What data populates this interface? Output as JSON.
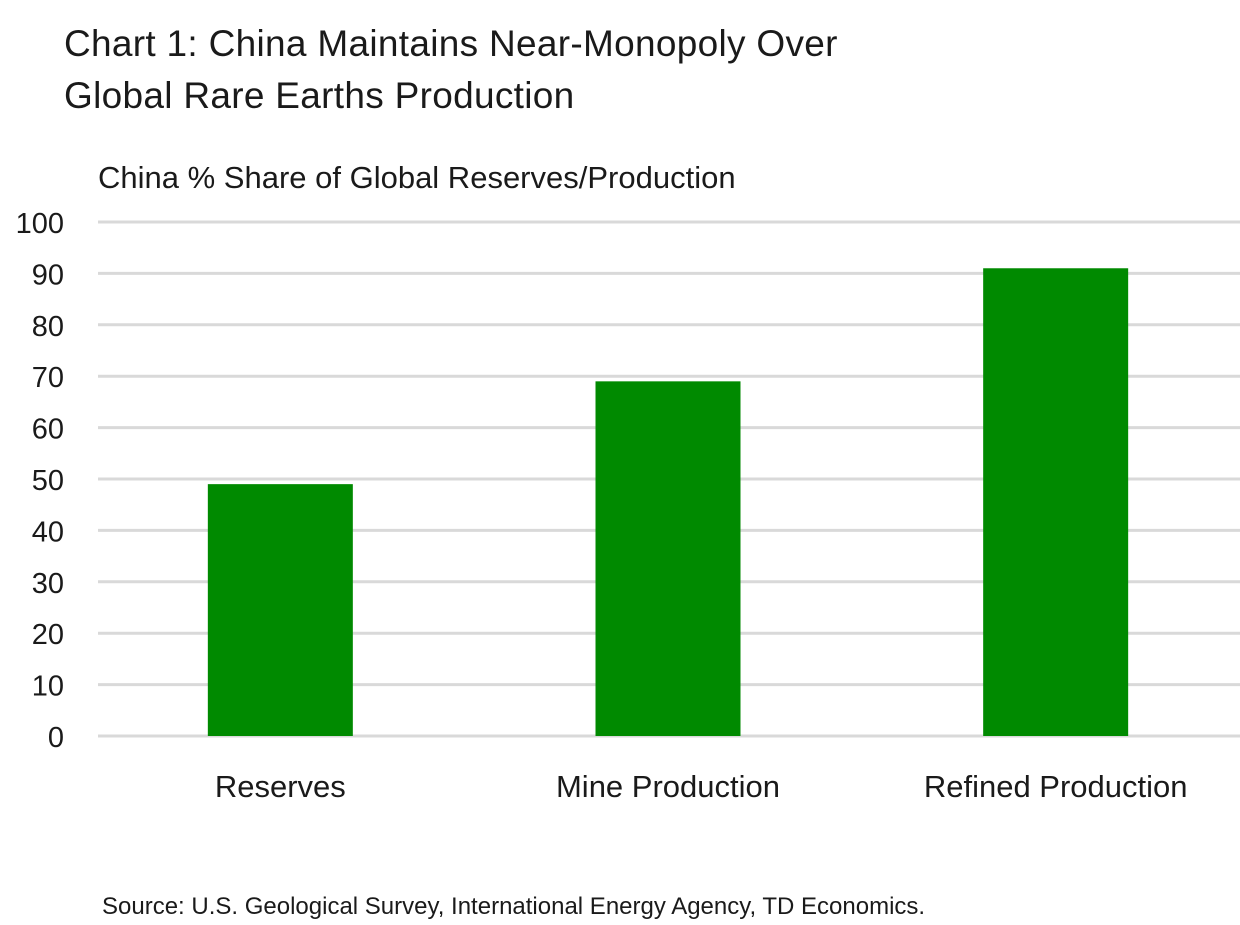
{
  "chart_data": {
    "type": "bar",
    "title": "Chart 1: China Maintains Near-Monopoly Over Global Rare Earths Production",
    "title_lines": [
      "Chart 1: China Maintains Near-Monopoly Over",
      "Global Rare Earths Production"
    ],
    "ylabel": "China % Share of Global Reserves/Production",
    "xlabel": "",
    "categories": [
      "Reserves",
      "Mine Production",
      "Refined Production"
    ],
    "values": [
      49,
      69,
      91
    ],
    "ylim": [
      0,
      100
    ],
    "yticks": [
      0,
      10,
      20,
      30,
      40,
      50,
      60,
      70,
      80,
      90,
      100
    ],
    "grid": true,
    "bar_color": "#008A00",
    "grid_color": "#D9D9D9",
    "source": "Source: U.S. Geological Survey, International Energy Agency, TD Economics."
  }
}
